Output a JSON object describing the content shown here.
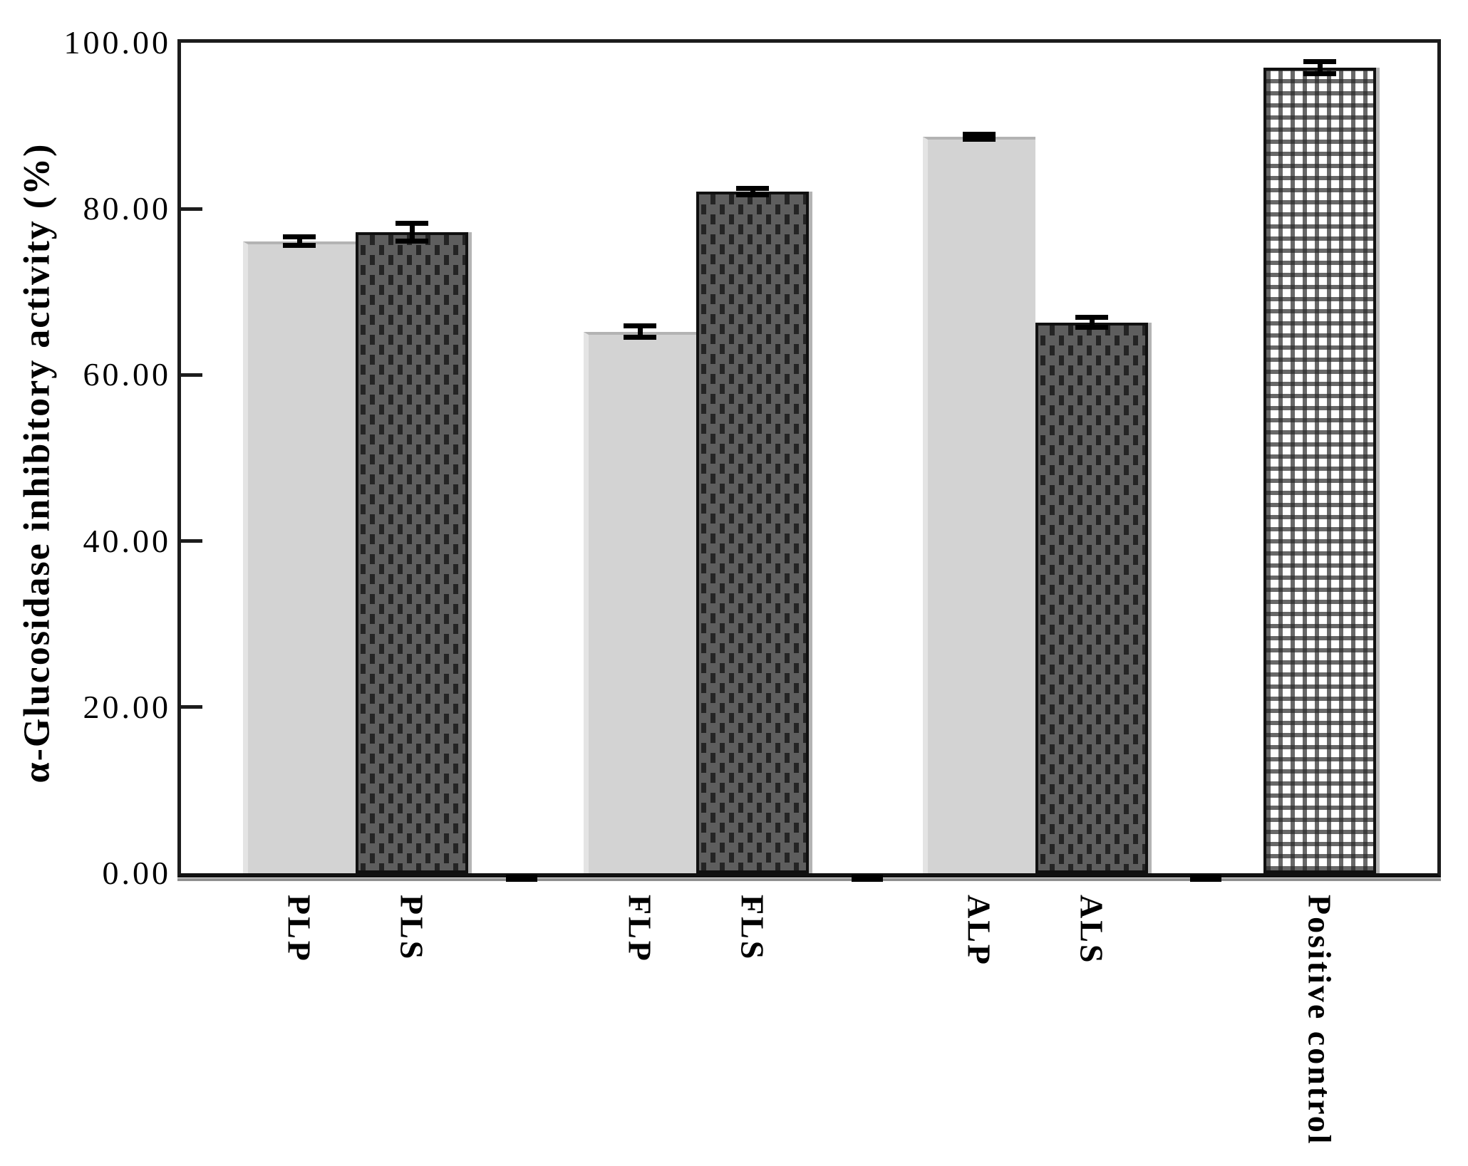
{
  "chart_data": {
    "type": "bar",
    "title": "",
    "xlabel": "",
    "ylabel": "α-Glucosidase inhibitory activity (%)",
    "ylim": [
      0,
      100
    ],
    "grid": "off",
    "legend": "none",
    "y_ticks": [
      {
        "value": 0,
        "label": "0.00"
      },
      {
        "value": 20,
        "label": "20.00"
      },
      {
        "value": 40,
        "label": "40.00"
      },
      {
        "value": 60,
        "label": "60.00"
      },
      {
        "value": 80,
        "label": "80.00"
      },
      {
        "value": 100,
        "label": "100.00"
      }
    ],
    "categories": [
      "PLP",
      "PLS",
      "FLP",
      "FLS",
      "ALP",
      "ALS",
      "Positive control"
    ],
    "values": [
      76.1,
      77.2,
      65.2,
      82.1,
      88.7,
      66.3,
      97.0
    ],
    "errors": [
      0.5,
      1.1,
      0.7,
      0.4,
      0.3,
      0.6,
      0.7
    ],
    "bar_patterns": [
      "light-solid",
      "dark-dotted",
      "light-solid",
      "dark-dotted",
      "light-solid",
      "dark-dotted",
      "checkered"
    ],
    "colors": {
      "light_bar": "#d3d3d3",
      "dark_bar_base": "#5e5e5e",
      "dark_bar_dash": "#242424",
      "checker_line": "#282828",
      "bar_border": "#101010",
      "error_bar": "#000000",
      "axis": "#1c1c1c"
    }
  }
}
